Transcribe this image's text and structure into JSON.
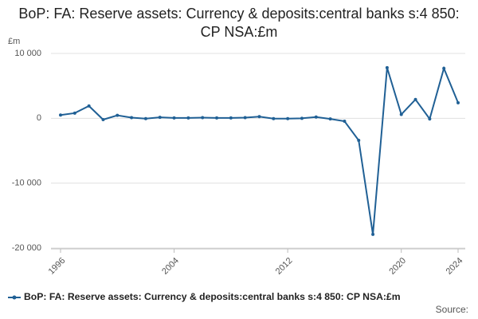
{
  "chart_data": {
    "type": "line",
    "title": "BoP: FA: Reserve assets: Currency & deposits:central banks s:4 850: CP NSA:£m",
    "y_label": "£m",
    "source": "Source:",
    "x": [
      1996,
      1997,
      1998,
      1999,
      2000,
      2001,
      2002,
      2003,
      2004,
      2005,
      2006,
      2007,
      2008,
      2009,
      2010,
      2011,
      2012,
      2013,
      2014,
      2015,
      2016,
      2017,
      2018,
      2019,
      2020,
      2021,
      2022,
      2023,
      2024
    ],
    "series": [
      {
        "name": "BoP: FA: Reserve assets: Currency & deposits:central banks s:4 850: CP NSA:£m",
        "color": "#206095",
        "values": [
          500,
          800,
          1900,
          -200,
          450,
          100,
          -50,
          150,
          50,
          50,
          100,
          50,
          50,
          100,
          250,
          -50,
          -50,
          0,
          200,
          -100,
          -450,
          -3400,
          -17900,
          7800,
          600,
          2900,
          -100,
          7700,
          2400
        ]
      }
    ],
    "xlim": [
      1996,
      2024
    ],
    "xticks": [
      1996,
      2004,
      2012,
      2020,
      2024
    ],
    "ylim": [
      -20000,
      10000
    ],
    "yticks": [
      {
        "value": -20000,
        "label": "-20 000"
      },
      {
        "value": -10000,
        "label": "-10 000"
      },
      0,
      {
        "value": 10000,
        "label": "10 000"
      }
    ],
    "grid": true,
    "legend": "bottom"
  }
}
